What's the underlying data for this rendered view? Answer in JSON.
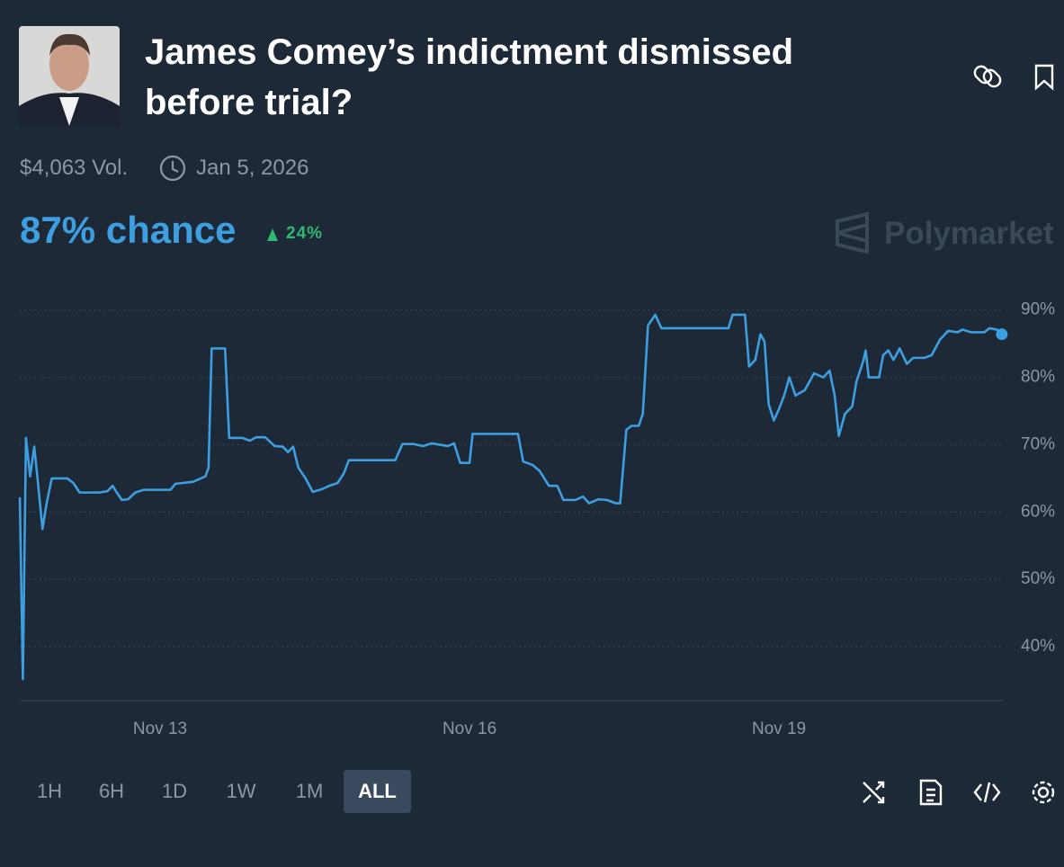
{
  "header": {
    "title": "James Comey’s indictment dismissed before trial?",
    "volume": "$4,063 Vol.",
    "date": "Jan 5, 2026"
  },
  "chance": {
    "text": "87% chance",
    "change": "24%"
  },
  "brand": "Polymarket",
  "timeframes": [
    {
      "label": "1H"
    },
    {
      "label": "6H"
    },
    {
      "label": "1D"
    },
    {
      "label": "1W"
    },
    {
      "label": "1M"
    },
    {
      "label": "ALL",
      "active": true
    }
  ],
  "chart_data": {
    "type": "line",
    "x": [
      11.64,
      11.67,
      11.7,
      11.74,
      11.78,
      11.81,
      11.86,
      11.9,
      11.95,
      12.1,
      12.16,
      12.22,
      12.41,
      12.49,
      12.54,
      12.58,
      12.63,
      12.69,
      12.76,
      12.84,
      13.1,
      13.15,
      13.32,
      13.44,
      13.47,
      13.5,
      13.63,
      13.67,
      13.8,
      13.87,
      13.93,
      14.02,
      14.11,
      14.19,
      14.24,
      14.29,
      14.34,
      14.41,
      14.48,
      14.57,
      14.64,
      14.72,
      14.78,
      14.83,
      15.28,
      15.35,
      15.46,
      15.55,
      15.63,
      15.79,
      15.85,
      15.91,
      16.0,
      16.03,
      16.47,
      16.52,
      16.61,
      16.68,
      16.77,
      16.85,
      16.91,
      17.03,
      17.1,
      17.16,
      17.25,
      17.33,
      17.42,
      17.46,
      17.52,
      17.57,
      17.64,
      17.68,
      17.73,
      17.8,
      17.86,
      18.51,
      18.55,
      18.67,
      18.71,
      18.77,
      18.82,
      18.86,
      18.9,
      18.95,
      19.0,
      19.05,
      19.1,
      19.16,
      19.25,
      19.34,
      19.43,
      19.49,
      19.54,
      19.58,
      19.64,
      19.71,
      19.75,
      19.82,
      19.84,
      19.87,
      19.97,
      20.01,
      20.06,
      20.11,
      20.17,
      20.24,
      20.3,
      20.41,
      20.48,
      20.56,
      20.64,
      20.73,
      20.78,
      20.86,
      20.99,
      21.04,
      21.11,
      21.16
    ],
    "series": [
      {
        "color": "#3d9ee0",
        "values": [
          62.2,
          35.2,
          71.0,
          65.3,
          69.7,
          65.3,
          57.5,
          61.3,
          65.0,
          65.0,
          64.3,
          62.9,
          62.9,
          63.1,
          63.9,
          62.9,
          61.8,
          61.9,
          62.9,
          63.3,
          63.3,
          64.2,
          64.5,
          65.3,
          66.6,
          84.3,
          84.3,
          71.0,
          71.0,
          70.6,
          71.1,
          71.1,
          69.8,
          69.7,
          68.9,
          69.7,
          66.6,
          65.0,
          63.0,
          63.4,
          63.9,
          64.3,
          65.7,
          67.7,
          67.7,
          70.1,
          70.1,
          69.8,
          70.2,
          69.8,
          70.2,
          67.3,
          67.3,
          71.6,
          71.6,
          67.5,
          67.0,
          66.1,
          63.9,
          63.9,
          61.8,
          61.8,
          62.3,
          61.3,
          61.9,
          61.8,
          61.3,
          61.3,
          72.2,
          72.8,
          72.8,
          74.6,
          87.7,
          89.3,
          87.3,
          87.3,
          89.3,
          89.3,
          81.6,
          82.6,
          86.4,
          85.3,
          76.0,
          73.6,
          75.3,
          77.3,
          80.0,
          77.3,
          78.1,
          80.6,
          80.0,
          81.0,
          77.3,
          71.3,
          74.6,
          75.7,
          79.3,
          82.6,
          84.0,
          80.0,
          80.0,
          83.3,
          84.0,
          82.6,
          84.3,
          82.0,
          82.9,
          82.9,
          83.3,
          85.6,
          86.9,
          86.7,
          87.1,
          86.7,
          86.7,
          87.3,
          87.1,
          86.4
        ]
      }
    ],
    "xlim": [
      11.64,
      21.17
    ],
    "xticks": [
      {
        "value": 13,
        "label": "Nov 13"
      },
      {
        "value": 16,
        "label": "Nov 16"
      },
      {
        "value": 19,
        "label": "Nov 19"
      }
    ],
    "ylim": [
      32,
      93.3
    ],
    "yticks": [
      {
        "value": 40,
        "label": "40%"
      },
      {
        "value": 50,
        "label": "50%"
      },
      {
        "value": 60,
        "label": "60%"
      },
      {
        "value": 70,
        "label": "70%"
      },
      {
        "value": 80,
        "label": "80%"
      },
      {
        "value": 90,
        "label": "90%"
      }
    ],
    "grid": true
  }
}
